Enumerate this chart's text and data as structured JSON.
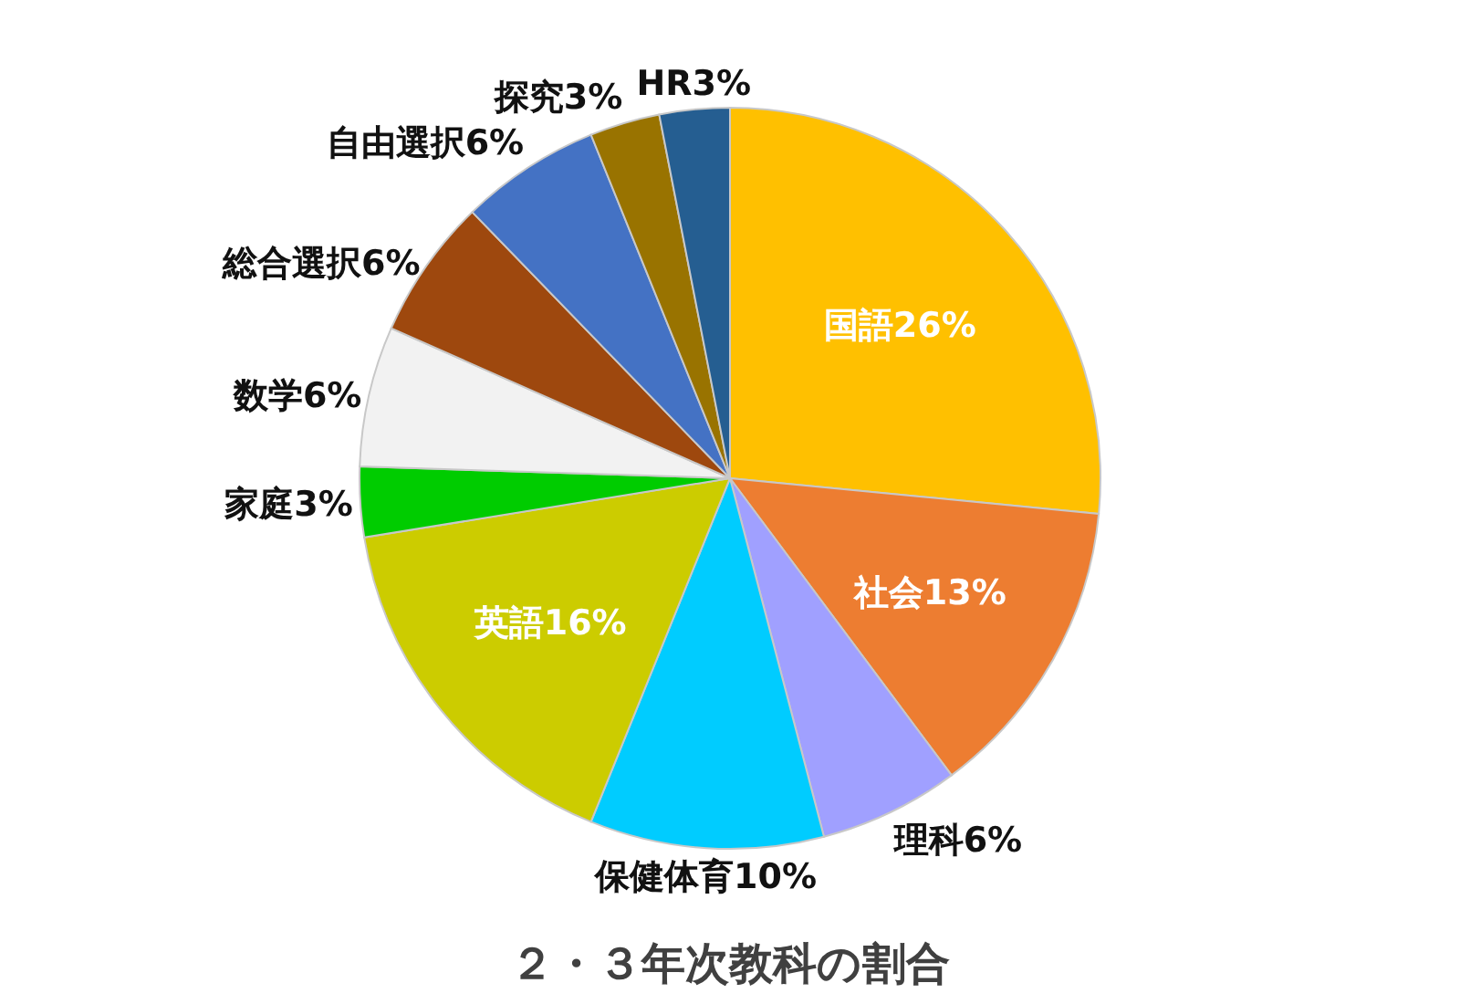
{
  "chart_data": {
    "type": "pie",
    "title": "２・３年次教科の割合",
    "categories": [
      "国語",
      "社会",
      "理科",
      "保健体育",
      "英語",
      "家庭",
      "数学",
      "総合選択",
      "自由選択",
      "探究",
      "HR"
    ],
    "values": [
      26,
      13,
      6,
      10,
      16,
      3,
      6,
      6,
      6,
      3,
      3
    ],
    "value_labels": [
      "26%",
      "13%",
      "6%",
      "10%",
      "16%",
      "3%",
      "6%",
      "6%",
      "6%",
      "3%",
      "3%"
    ],
    "colors": [
      "#ffc000",
      "#ed7d31",
      "#a0a0ff",
      "#00ccff",
      "#cccc00",
      "#00cc00",
      "#f2f2f2",
      "#9e480e",
      "#4472c4",
      "#997300",
      "#255e91"
    ],
    "legend": false
  }
}
